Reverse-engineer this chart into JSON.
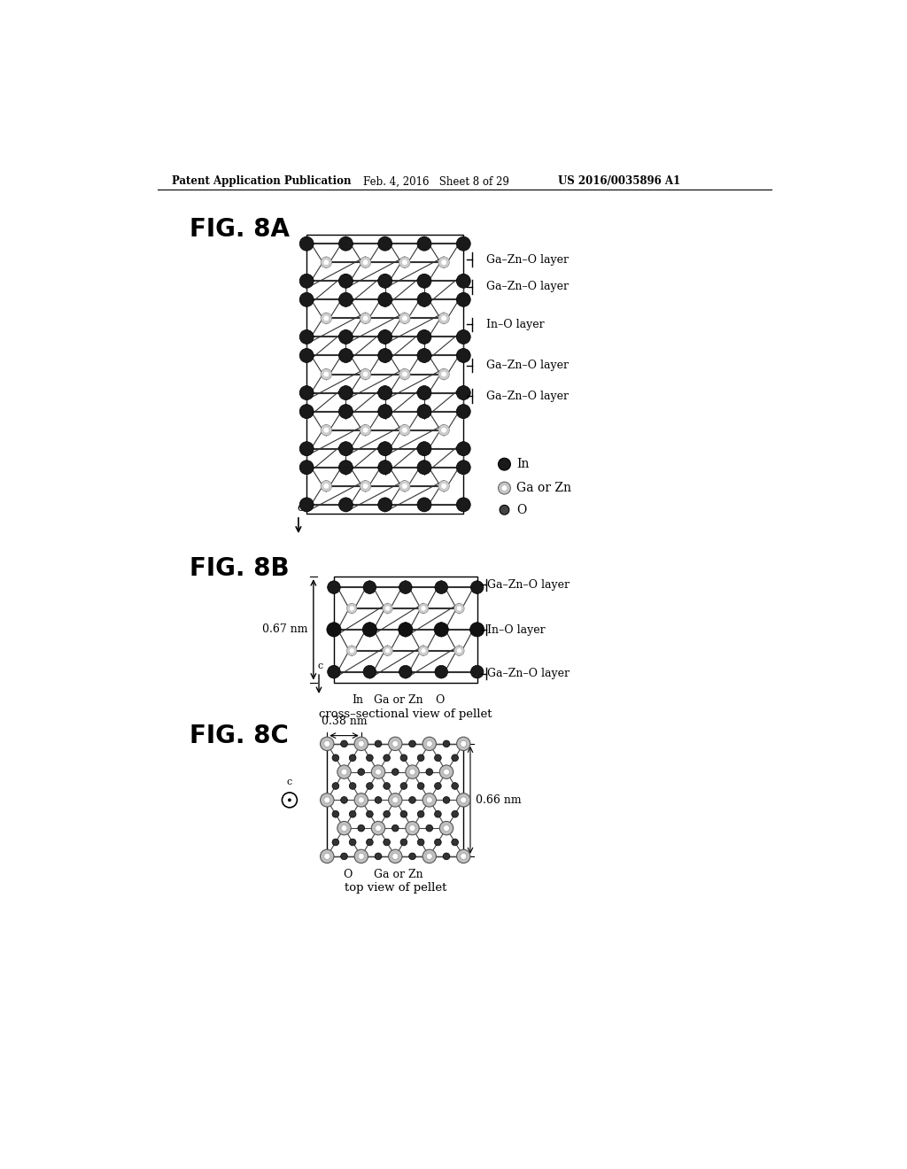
{
  "header_left": "Patent Application Publication",
  "header_mid": "Feb. 4, 2016   Sheet 8 of 29",
  "header_right": "US 2016/0035896 A1",
  "fig8a_label": "FIG. 8A",
  "fig8b_label": "FIG. 8B",
  "fig8c_label": "FIG. 8C",
  "fig8a_layer_labels": [
    "Ga–Zn–O layer",
    "Ga–Zn–O layer",
    "In–O layer",
    "Ga–Zn–O layer",
    "Ga–Zn–O layer"
  ],
  "fig8a_legend_labels": [
    "In",
    "Ga or Zn",
    "O"
  ],
  "fig8b_layer_labels": [
    "Ga–Zn–O layer",
    "In–O layer",
    "Ga–Zn–O layer"
  ],
  "fig8b_measurement": "0.67 nm",
  "fig8b_atom_labels": [
    "In",
    "Ga or Zn",
    "O"
  ],
  "fig8b_caption": "cross–sectional view of pellet",
  "fig8c_meas_h": "0.38 nm",
  "fig8c_meas_v": "0.66 nm",
  "fig8c_atom_labels": [
    "O",
    "Ga or Zn"
  ],
  "fig8c_caption": "top view of pellet",
  "bg_color": "#ffffff"
}
